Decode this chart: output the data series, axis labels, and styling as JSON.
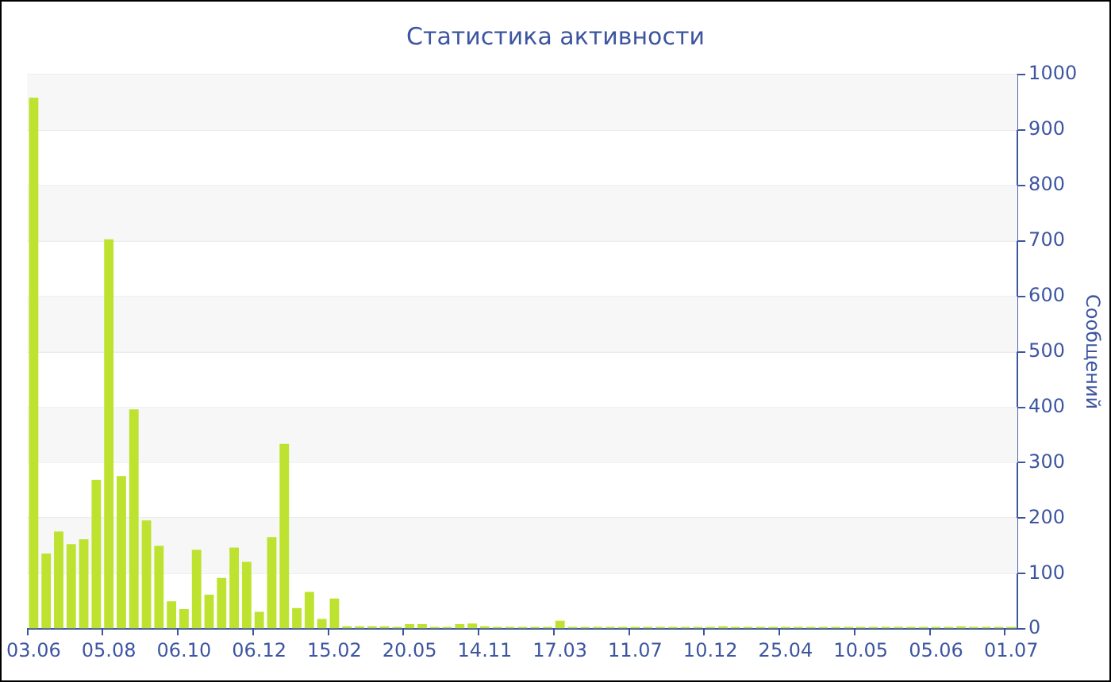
{
  "chart_data": {
    "type": "bar",
    "title": "Статистика активности",
    "y2label": "Сообщений",
    "categories": [
      "03.06",
      null,
      null,
      null,
      null,
      null,
      "05.08",
      null,
      null,
      null,
      null,
      null,
      "06.10",
      null,
      null,
      null,
      null,
      null,
      "06.12",
      null,
      null,
      null,
      null,
      null,
      "15.02",
      null,
      null,
      null,
      null,
      null,
      "20.05",
      null,
      null,
      null,
      null,
      null,
      "14.11",
      null,
      null,
      null,
      null,
      null,
      "17.03",
      null,
      null,
      null,
      null,
      null,
      "11.07",
      null,
      null,
      null,
      null,
      null,
      "10.12",
      null,
      null,
      null,
      null,
      null,
      "25.04",
      null,
      null,
      null,
      null,
      null,
      "10.05",
      null,
      null,
      null,
      null,
      null,
      "05.06",
      null,
      null,
      null,
      null,
      null,
      "01.07"
    ],
    "series": [
      {
        "color": "#bde22f",
        "axis": "y2",
        "values": [
          958,
          136,
          176,
          153,
          162,
          269,
          703,
          276,
          396,
          196,
          150,
          50,
          36,
          143,
          62,
          92,
          147,
          121,
          31,
          166,
          334,
          38,
          67,
          18,
          55,
          5,
          5,
          5,
          5,
          4,
          9,
          9,
          4,
          4,
          9,
          10,
          5,
          4,
          4,
          4,
          4,
          4,
          15,
          4,
          4,
          4,
          4,
          4,
          4,
          4,
          4,
          4,
          4,
          4,
          4,
          5,
          4,
          4,
          4,
          4,
          4,
          4,
          4,
          4,
          4,
          4,
          4,
          4,
          4,
          4,
          4,
          4,
          4,
          4,
          5,
          4,
          4,
          4,
          4
        ]
      }
    ],
    "y2lim": [
      0,
      1000
    ],
    "y2ticks": [
      0,
      100,
      200,
      300,
      400,
      500,
      600,
      700,
      800,
      900,
      1000
    ],
    "grid": "y",
    "legend": false
  }
}
